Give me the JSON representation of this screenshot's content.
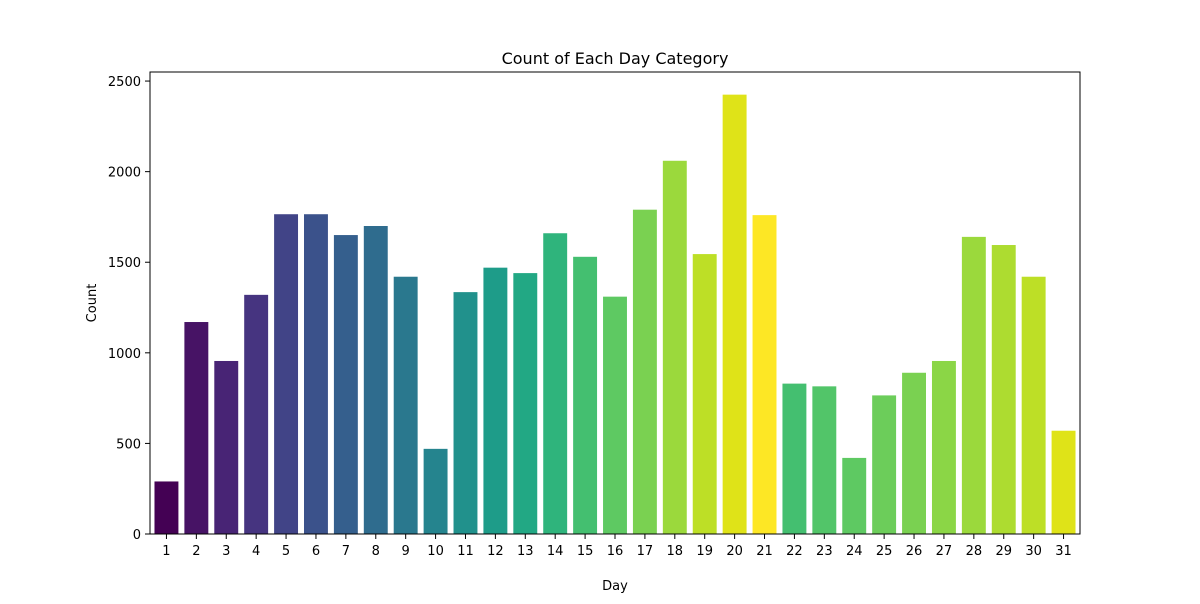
{
  "chart_data": {
    "type": "bar",
    "title": "Count of Each Day Category",
    "xlabel": "Day",
    "ylabel": "Count",
    "ylim": [
      0,
      2550
    ],
    "yticks": [
      0,
      500,
      1000,
      1500,
      2000,
      2500
    ],
    "grid": false,
    "legend": "none",
    "colormap": "viridis",
    "categories": [
      "1",
      "2",
      "3",
      "4",
      "5",
      "6",
      "7",
      "8",
      "9",
      "10",
      "11",
      "12",
      "13",
      "14",
      "15",
      "16",
      "17",
      "18",
      "19",
      "20",
      "21",
      "22",
      "23",
      "24",
      "25",
      "26",
      "27",
      "28",
      "29",
      "30",
      "31"
    ],
    "values": [
      290,
      1170,
      955,
      1320,
      1765,
      1765,
      1650,
      1700,
      1420,
      470,
      1335,
      1470,
      1440,
      1660,
      1530,
      1310,
      1790,
      2060,
      1545,
      2425,
      1760,
      830,
      815,
      420,
      765,
      890,
      955,
      1640,
      1595,
      1420,
      570
    ],
    "colors": [
      "#440154",
      "#471365",
      "#482475",
      "#463480",
      "#414487",
      "#3b528b",
      "#355f8d",
      "#2f6c8e",
      "#2a788e",
      "#25848e",
      "#21918c",
      "#1e9c89",
      "#22a884",
      "#2fb47c",
      "#44bf70",
      "#5ec962",
      "#7ad151",
      "#9bd93c",
      "#bddf26",
      "#dfe318",
      "#fde725",
      "#44bf70",
      "#52c569",
      "#5ec962",
      "#6ccd5a",
      "#7ad151",
      "#8bd646",
      "#9bd93c",
      "#addc30",
      "#bddf26",
      "#dfe318"
    ]
  }
}
